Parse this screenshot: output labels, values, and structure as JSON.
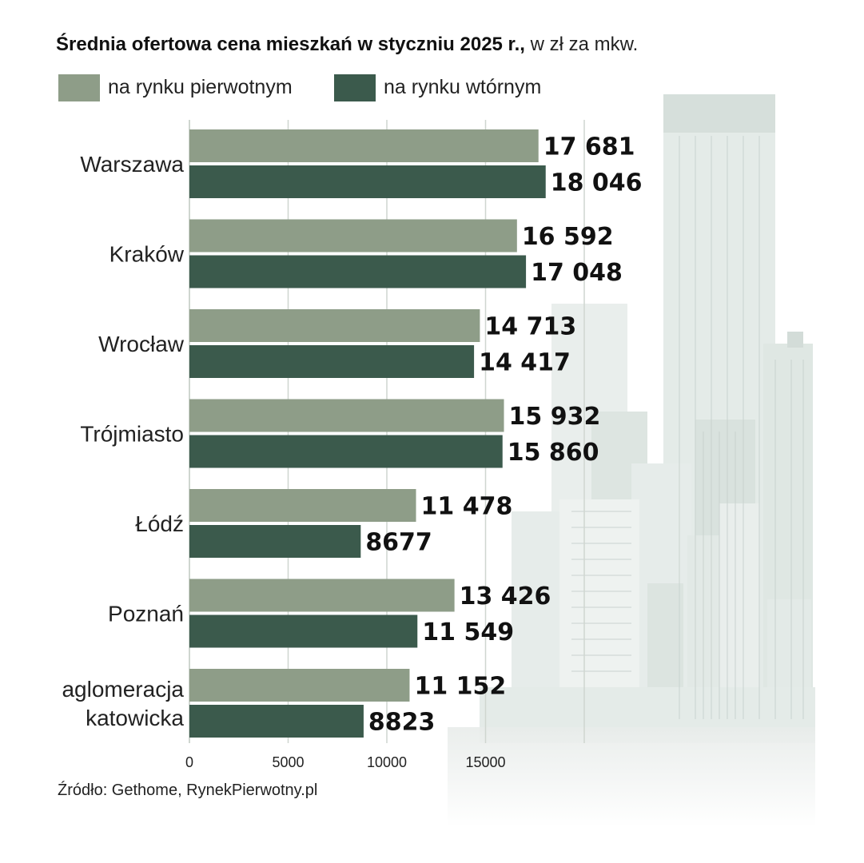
{
  "title": {
    "bold": "Średnia ofertowa cena mieszkań w styczniu  2025 r.,",
    "light": " w zł za mkw."
  },
  "legend": {
    "primary_label": "na rynku pierwotnym",
    "secondary_label": "na rynku wtórnym"
  },
  "colors": {
    "primary": "#8e9d88",
    "secondary": "#3b5a4c",
    "grid": "#cfd6d0",
    "value_text": "#111111",
    "city_text": "#222222"
  },
  "chart_data": {
    "type": "bar",
    "orientation": "horizontal",
    "title": "Średnia ofertowa cena mieszkań w styczniu 2025 r., w zł za mkw.",
    "xlabel": "",
    "ylabel": "",
    "xlim": [
      0,
      20000
    ],
    "xticks": [
      0,
      5000,
      10000,
      15000
    ],
    "grid": true,
    "categories": [
      [
        "Warszawa"
      ],
      [
        "Kraków"
      ],
      [
        "Wrocław"
      ],
      [
        "Trójmiasto"
      ],
      [
        "Łódź"
      ],
      [
        "Poznań"
      ],
      [
        "aglomeracja",
        "katowicka"
      ]
    ],
    "series": [
      {
        "name": "na rynku pierwotnym",
        "values": [
          17681,
          16592,
          14713,
          15932,
          11478,
          13426,
          11152
        ],
        "labels": [
          "17 681",
          "16 592",
          "14 713",
          "15 932",
          "11 478",
          "13 426",
          "11 152"
        ]
      },
      {
        "name": "na rynku wtórnym",
        "values": [
          18046,
          17048,
          14417,
          15860,
          8677,
          11549,
          8823
        ],
        "labels": [
          "18 046",
          "17 048",
          "14 417",
          "15 860",
          "8677",
          "11 549",
          "8823"
        ]
      }
    ]
  },
  "source": "Źródło: Gethome, RynekPierwotny.pl"
}
